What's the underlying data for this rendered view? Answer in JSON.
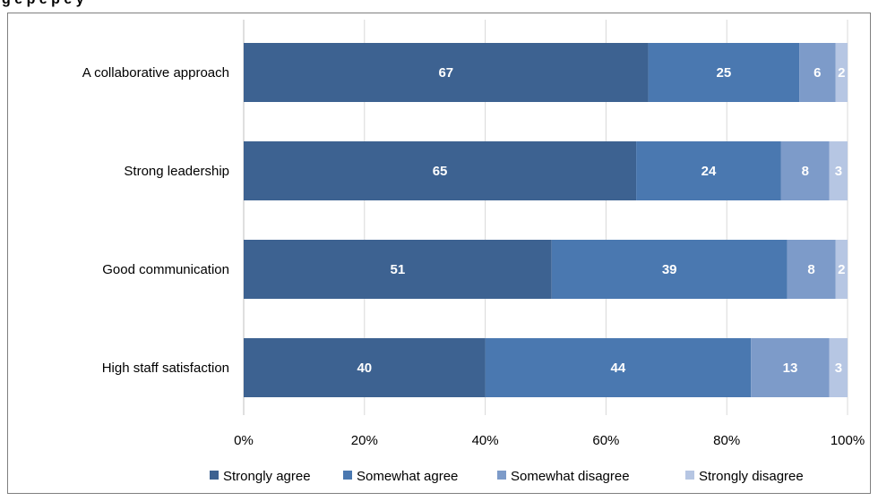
{
  "figure": {
    "title_fragment": "g   e      p  e  p    e                y"
  },
  "chart_data": {
    "type": "bar",
    "orientation": "horizontal",
    "stacked": true,
    "categories": [
      "A collaborative approach",
      "Strong leadership",
      "Good communication",
      "High staff satisfaction"
    ],
    "series": [
      {
        "name": "Strongly agree",
        "values": [
          67,
          65,
          51,
          40
        ],
        "color": "#3d6291"
      },
      {
        "name": "Somewhat agree",
        "values": [
          25,
          24,
          39,
          44
        ],
        "color": "#4a78b0"
      },
      {
        "name": "Somewhat disagree",
        "values": [
          6,
          8,
          8,
          13
        ],
        "color": "#7d9bc9"
      },
      {
        "name": "Strongly disagree",
        "values": [
          2,
          3,
          2,
          3
        ],
        "color": "#b6c6e3"
      }
    ],
    "xlim": [
      0,
      100
    ],
    "ticks": [
      "0%",
      "20%",
      "40%",
      "60%",
      "80%",
      "100%"
    ],
    "grid": true,
    "legend_position": "bottom"
  }
}
